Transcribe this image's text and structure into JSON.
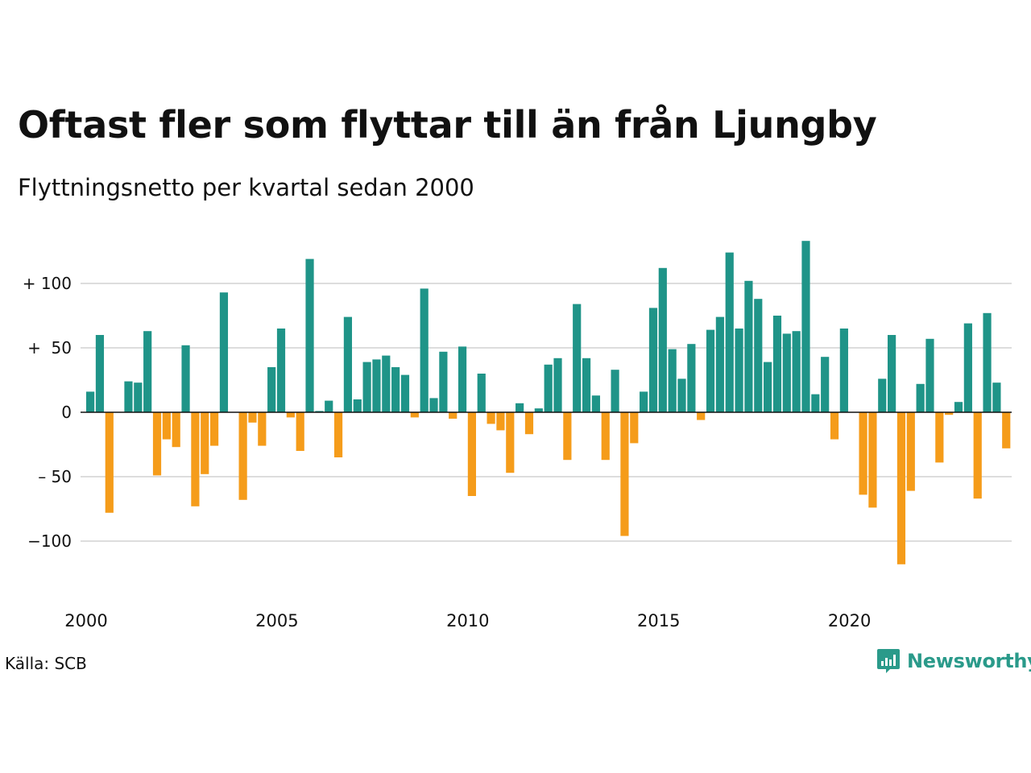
{
  "header": {
    "title": "Oftast fler som flyttar till än från Ljungby",
    "subtitle": "Flyttningsnetto per kvartal sedan 2000"
  },
  "footer": {
    "source": "Källa: SCB",
    "brand": "Newsworthy"
  },
  "colors": {
    "positive": "#1f9488",
    "negative": "#f59c1a",
    "grid": "#dddddd",
    "zero_line": "#111111",
    "brand": "#2a9a8a"
  },
  "chart_data": {
    "type": "bar",
    "title": "Oftast fler som flyttar till än från Ljungby",
    "subtitle": "Flyttningsnetto per kvartal sedan 2000",
    "xlabel": "",
    "ylabel": "",
    "ylim": [
      -120,
      135
    ],
    "grid": true,
    "yticks": [
      {
        "value": 100,
        "label": "+ 100"
      },
      {
        "value": 50,
        "label": "+  50"
      },
      {
        "value": 0,
        "label": "0"
      },
      {
        "value": -50,
        "label": "– 50"
      },
      {
        "value": -100,
        "label": "−100"
      }
    ],
    "xticks": [
      "2000",
      "2005",
      "2010",
      "2015",
      "2020"
    ],
    "start_year": 2000,
    "period": "quarter",
    "values": [
      16,
      60,
      -78,
      0,
      24,
      23,
      63,
      -49,
      -21,
      -27,
      52,
      -73,
      -48,
      -26,
      93,
      0,
      -68,
      -8,
      -26,
      35,
      65,
      -4,
      -30,
      119,
      1,
      9,
      -35,
      74,
      10,
      39,
      41,
      44,
      35,
      29,
      -4,
      96,
      11,
      47,
      -5,
      51,
      -65,
      30,
      -9,
      -14,
      -47,
      7,
      -17,
      3,
      37,
      42,
      -37,
      84,
      42,
      13,
      -37,
      33,
      -96,
      -24,
      16,
      81,
      112,
      49,
      26,
      53,
      -6,
      64,
      74,
      124,
      65,
      102,
      88,
      39,
      75,
      61,
      63,
      133,
      14,
      43,
      -21,
      65,
      0,
      -64,
      -74,
      26,
      60,
      -118,
      -61,
      22,
      57,
      -39,
      -2,
      8,
      69,
      -67,
      77,
      23,
      -28
    ]
  }
}
